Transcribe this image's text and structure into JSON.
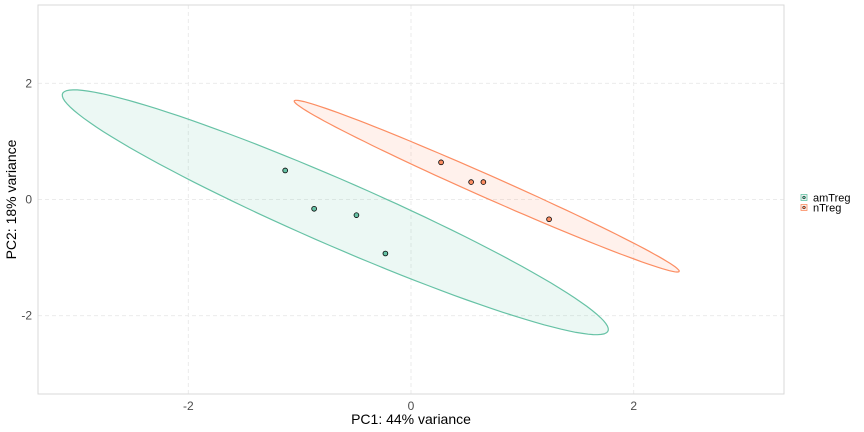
{
  "chart_data": {
    "type": "scatter",
    "title": "",
    "xlabel": "PC1: 44% variance",
    "ylabel": "PC2: 18% variance",
    "xlim": [
      -3.35,
      3.35
    ],
    "ylim": [
      -3.35,
      3.35
    ],
    "x_ticks": [
      -2,
      0,
      2
    ],
    "y_ticks": [
      -2,
      0,
      2
    ],
    "grid": true,
    "legend_position": "right",
    "series": [
      {
        "name": "amTreg",
        "color": "#66c2a5",
        "points": [
          {
            "x": -1.13,
            "y": 0.5
          },
          {
            "x": -0.87,
            "y": -0.16
          },
          {
            "x": -0.49,
            "y": -0.27
          },
          {
            "x": -0.23,
            "y": -0.93
          }
        ],
        "ellipse": {
          "cx": -0.68,
          "cy": -0.22,
          "semi_major": 3.2,
          "semi_minor": 0.47,
          "angle_deg": -40.5
        }
      },
      {
        "name": "nTreg",
        "color": "#fc8d62",
        "points": [
          {
            "x": 0.27,
            "y": 0.64
          },
          {
            "x": 0.54,
            "y": 0.3
          },
          {
            "x": 0.65,
            "y": 0.3
          },
          {
            "x": 1.24,
            "y": -0.34
          }
        ],
        "ellipse": {
          "cx": 0.68,
          "cy": 0.23,
          "semi_major": 2.27,
          "semi_minor": 0.16,
          "angle_deg": -40.5
        }
      }
    ]
  }
}
